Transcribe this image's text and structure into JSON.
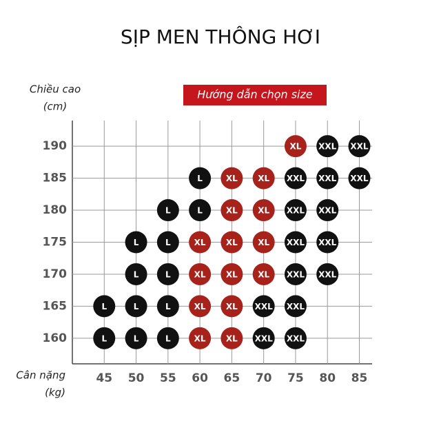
{
  "chart_data": {
    "type": "scatter",
    "title": "SỊP MEN THÔNG HƠI",
    "banner": "Hướng dẫn chọn size",
    "y_label": [
      "Chiều cao",
      "(cm)"
    ],
    "x_label": [
      "Cân nặng",
      "(kg)"
    ],
    "xlim": [
      40,
      87
    ],
    "ylim": [
      156,
      194
    ],
    "xticks": [
      45,
      50,
      55,
      60,
      65,
      70,
      75,
      80,
      85
    ],
    "yticks": [
      160,
      165,
      170,
      175,
      180,
      185,
      190
    ],
    "grid": true,
    "series": [
      {
        "name": "L",
        "color": "#111111",
        "x": [
          60,
          55,
          60,
          50,
          55,
          50,
          55,
          45,
          50,
          55,
          45,
          50,
          55
        ],
        "values": [
          185,
          180,
          180,
          175,
          175,
          170,
          170,
          165,
          165,
          165,
          160,
          160,
          160
        ]
      },
      {
        "name": "XL",
        "color": "#a6221b",
        "x": [
          75,
          65,
          70,
          65,
          70,
          60,
          65,
          70,
          60,
          65,
          70,
          60,
          65,
          60,
          65
        ],
        "values": [
          190,
          185,
          185,
          180,
          180,
          175,
          175,
          175,
          170,
          170,
          170,
          165,
          165,
          160,
          160
        ]
      },
      {
        "name": "XXL",
        "color": "#111111",
        "x": [
          80,
          85,
          75,
          80,
          85,
          75,
          80,
          75,
          80,
          75,
          80,
          70,
          75,
          70,
          75
        ],
        "values": [
          190,
          190,
          185,
          185,
          185,
          180,
          180,
          175,
          175,
          170,
          170,
          165,
          165,
          160,
          160
        ]
      }
    ]
  }
}
